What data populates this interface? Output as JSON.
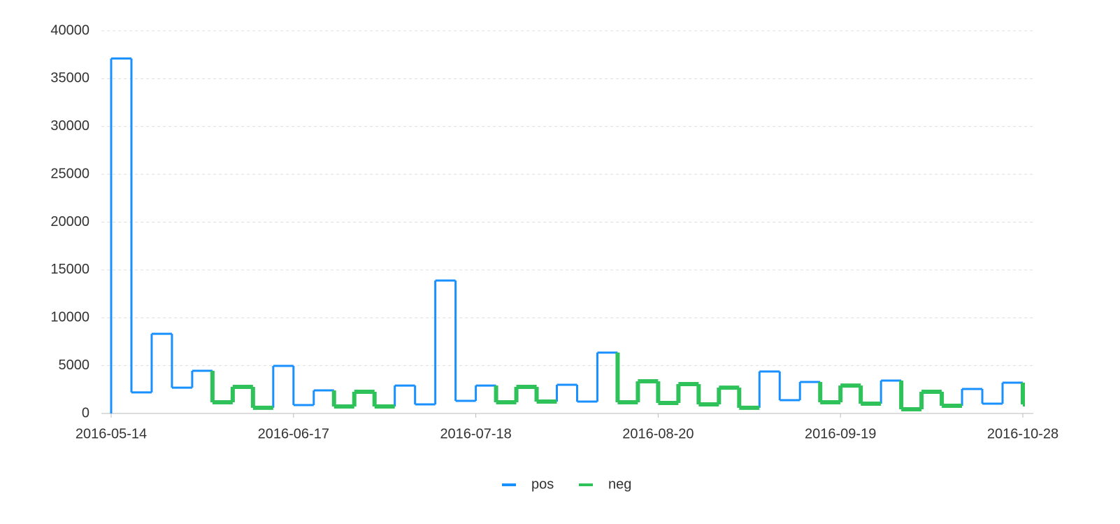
{
  "chart_data": {
    "type": "step-line",
    "categories": [
      "2016-05-14",
      null,
      null,
      null,
      null,
      null,
      null,
      null,
      null,
      "2016-06-17",
      null,
      null,
      null,
      null,
      null,
      null,
      null,
      null,
      "2016-07-18",
      null,
      null,
      null,
      null,
      null,
      null,
      null,
      null,
      "2016-08-20",
      null,
      null,
      null,
      null,
      null,
      null,
      null,
      null,
      "2016-09-19",
      null,
      null,
      null,
      null,
      null,
      null,
      null,
      null,
      "2016-10-28"
    ],
    "series": [
      {
        "name": "pos",
        "color": "#1890ff",
        "values": [
          37100,
          2200,
          8330,
          2700,
          4460,
          null,
          null,
          null,
          4970,
          880,
          2410,
          null,
          null,
          null,
          2920,
          950,
          13890,
          1320,
          2920,
          null,
          null,
          null,
          3000,
          1240,
          6360,
          null,
          null,
          null,
          null,
          null,
          null,
          null,
          4390,
          1390,
          3290,
          null,
          null,
          null,
          3440,
          null,
          null,
          null,
          2560,
          1020,
          3220,
          null
        ]
      },
      {
        "name": "neg",
        "color": "#2fc25b",
        "values": [
          null,
          null,
          null,
          null,
          null,
          1170,
          2780,
          590,
          null,
          null,
          null,
          730,
          2270,
          730,
          null,
          null,
          null,
          null,
          null,
          1170,
          2780,
          1240,
          null,
          null,
          null,
          1170,
          3360,
          1100,
          3070,
          950,
          2700,
          590,
          null,
          null,
          null,
          1170,
          2920,
          1020,
          null,
          440,
          2270,
          800,
          null,
          null,
          null,
          950
        ]
      }
    ],
    "ylim": [
      0,
      40000
    ],
    "yticks": [
      0,
      5000,
      10000,
      15000,
      20000,
      25000,
      30000,
      35000,
      40000
    ],
    "grid": true
  }
}
